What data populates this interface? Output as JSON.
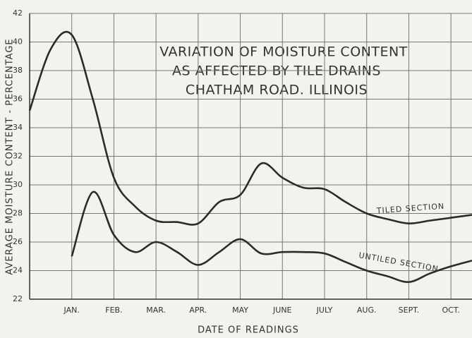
{
  "chart_data": {
    "type": "line",
    "title": [
      "VARIATION OF MOISTURE CONTENT",
      "AS AFFECTED BY TILE DRAINS",
      "CHATHAM ROAD. ILLINOIS"
    ],
    "x_label": "DATE OF READINGS",
    "y_label": "AVERAGE MOISTURE CONTENT - PERCENTAGE",
    "categories": [
      null,
      null,
      "JAN.",
      null,
      "FEB.",
      null,
      "MAR.",
      null,
      "APR.",
      null,
      "MAY",
      null,
      "JUNE",
      null,
      "JULY",
      null,
      "AUG.",
      null,
      "SEPT.",
      null,
      "OCT.",
      null
    ],
    "series": [
      {
        "name": "TILED SECTION",
        "color": "#2b2b2b",
        "values": [
          35.2,
          39.5,
          40.5,
          36,
          30.5,
          28.5,
          27.5,
          27.4,
          27.3,
          28.8,
          29.3,
          31.5,
          30.5,
          29.8,
          29.7,
          28.8,
          28.0,
          27.6,
          27.3,
          27.5,
          27.7,
          27.9
        ]
      },
      {
        "name": "UNTILED SECTION",
        "color": "#2b2b2b",
        "values": [
          null,
          null,
          25.0,
          29.5,
          26.5,
          25.3,
          26.0,
          25.3,
          24.4,
          25.3,
          26.2,
          25.2,
          25.3,
          25.3,
          25.2,
          24.6,
          24.0,
          23.6,
          23.2,
          23.8,
          24.3,
          24.7
        ]
      }
    ],
    "ylim": [
      22,
      42
    ],
    "yticks": [
      22,
      24,
      26,
      28,
      30,
      32,
      34,
      36,
      38,
      40,
      42
    ],
    "grid": true
  }
}
